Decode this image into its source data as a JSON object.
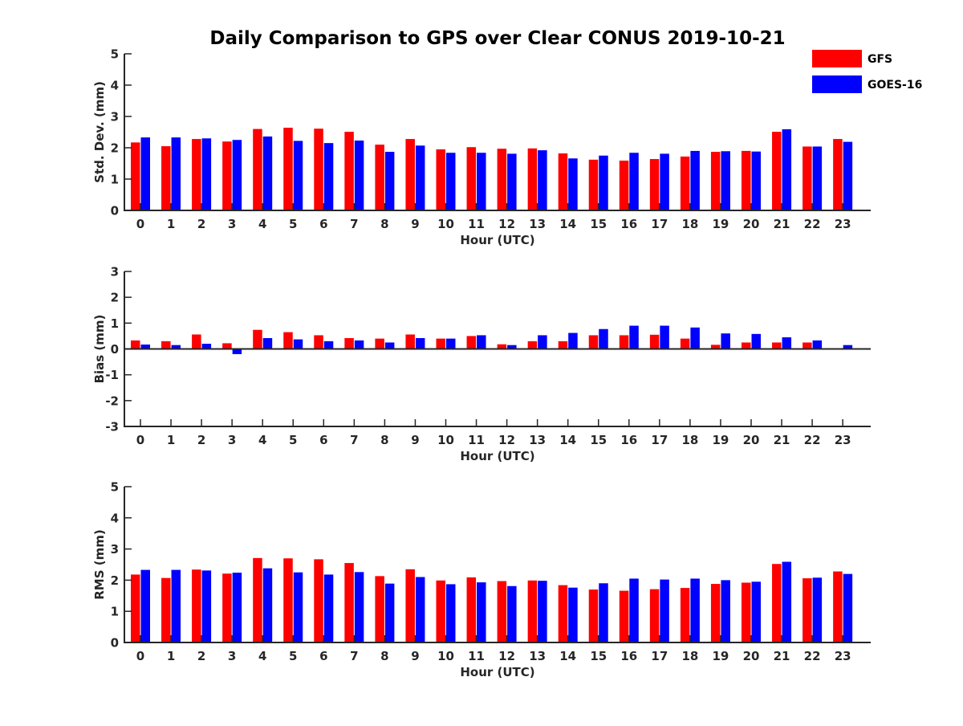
{
  "chart_data": {
    "type": "bar",
    "title": "Daily Comparison to GPS over Clear CONUS 2019-10-21",
    "categories": [
      "0",
      "1",
      "2",
      "3",
      "4",
      "5",
      "6",
      "7",
      "8",
      "9",
      "10",
      "11",
      "12",
      "13",
      "14",
      "15",
      "16",
      "17",
      "18",
      "19",
      "20",
      "21",
      "22",
      "23"
    ],
    "legend": {
      "position": "top-right",
      "entries": [
        {
          "name": "GFS",
          "color": "#ff0000"
        },
        {
          "name": "GOES-16",
          "color": "#0000ff"
        }
      ]
    },
    "panels": [
      {
        "id": "stddev",
        "xlabel": "Hour (UTC)",
        "ylabel": "Std. Dev. (mm)",
        "ylim": [
          0,
          5
        ],
        "yticks": [
          "0",
          "1",
          "2",
          "3",
          "4",
          "5"
        ],
        "series": [
          {
            "name": "GFS",
            "color": "#ff0000",
            "values": [
              2.17,
              2.05,
              2.28,
              2.2,
              2.6,
              2.64,
              2.61,
              2.51,
              2.1,
              2.28,
              1.95,
              2.02,
              1.97,
              1.98,
              1.82,
              1.62,
              1.59,
              1.64,
              1.72,
              1.87,
              1.9,
              2.51,
              2.04,
              2.28
            ]
          },
          {
            "name": "GOES-16",
            "color": "#0000ff",
            "values": [
              2.33,
              2.33,
              2.3,
              2.25,
              2.36,
              2.22,
              2.15,
              2.23,
              1.87,
              2.07,
              1.84,
              1.84,
              1.81,
              1.92,
              1.66,
              1.75,
              1.84,
              1.81,
              1.9,
              1.89,
              1.88,
              2.59,
              2.04,
              2.19
            ]
          }
        ]
      },
      {
        "id": "bias",
        "xlabel": "Hour (UTC)",
        "ylabel": "Bias (mm)",
        "ylim": [
          -3,
          3
        ],
        "yticks": [
          "-3",
          "-2",
          "-1",
          "0",
          "1",
          "2",
          "3"
        ],
        "series": [
          {
            "name": "GFS",
            "color": "#ff0000",
            "values": [
              0.33,
              0.3,
              0.56,
              0.22,
              0.74,
              0.65,
              0.53,
              0.42,
              0.4,
              0.56,
              0.4,
              0.5,
              0.18,
              0.3,
              0.3,
              0.53,
              0.53,
              0.55,
              0.4,
              0.16,
              0.25,
              0.25,
              0.25,
              0.0
            ]
          },
          {
            "name": "GOES-16",
            "color": "#0000ff",
            "values": [
              0.17,
              0.15,
              0.2,
              -0.2,
              0.42,
              0.37,
              0.3,
              0.33,
              0.25,
              0.42,
              0.4,
              0.53,
              0.15,
              0.53,
              0.62,
              0.77,
              0.9,
              0.9,
              0.83,
              0.6,
              0.58,
              0.45,
              0.33,
              0.15
            ]
          }
        ]
      },
      {
        "id": "rms",
        "xlabel": "Hour (UTC)",
        "ylabel": "RMS (mm)",
        "ylim": [
          0,
          5
        ],
        "yticks": [
          "0",
          "1",
          "2",
          "3",
          "4",
          "5"
        ],
        "series": [
          {
            "name": "GFS",
            "color": "#ff0000",
            "values": [
              2.18,
              2.07,
              2.34,
              2.21,
              2.71,
              2.7,
              2.67,
              2.55,
              2.13,
              2.35,
              1.99,
              2.09,
              1.97,
              1.99,
              1.84,
              1.7,
              1.66,
              1.71,
              1.75,
              1.88,
              1.92,
              2.52,
              2.06,
              2.28
            ]
          },
          {
            "name": "GOES-16",
            "color": "#0000ff",
            "values": [
              2.33,
              2.33,
              2.31,
              2.24,
              2.38,
              2.25,
              2.18,
              2.26,
              1.89,
              2.1,
              1.87,
              1.93,
              1.81,
              1.98,
              1.76,
              1.9,
              2.05,
              2.02,
              2.05,
              2.0,
              1.95,
              2.59,
              2.08,
              2.2
            ]
          }
        ]
      }
    ]
  }
}
